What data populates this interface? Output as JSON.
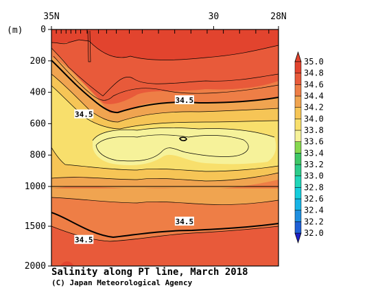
{
  "chart_data": {
    "type": "heatmap",
    "title": "Salinity along PT line, March 2018",
    "credit": "(C) Japan Meteorological Agency",
    "xlabel": "",
    "ylabel": "(m)",
    "x_axis": {
      "lat_range": [
        35,
        28
      ],
      "ticks": [
        {
          "value": 35,
          "label": "35N"
        },
        {
          "value": 30,
          "label": "30"
        },
        {
          "value": 28,
          "label": "28N"
        }
      ]
    },
    "y_axis": {
      "range": [
        0,
        2000
      ],
      "break_at": 1000,
      "ticks_upper": [
        {
          "value": 0,
          "label": "0"
        },
        {
          "value": 200,
          "label": "200"
        },
        {
          "value": 400,
          "label": "400"
        },
        {
          "value": 600,
          "label": "600"
        },
        {
          "value": 800,
          "label": "800"
        },
        {
          "value": 1000,
          "label": "1000"
        }
      ],
      "ticks_lower": [
        {
          "value": 1500,
          "label": "1500"
        },
        {
          "value": 2000,
          "label": "2000"
        }
      ]
    },
    "colorbar": {
      "levels": [
        32.0,
        32.2,
        32.4,
        32.6,
        32.8,
        33.0,
        33.2,
        33.4,
        33.6,
        33.8,
        34.0,
        34.2,
        34.4,
        34.6,
        34.8,
        35.0
      ],
      "labels": [
        "32.0",
        "32.2",
        "32.4",
        "32.6",
        "32.8",
        "33.0",
        "33.2",
        "33.4",
        "33.6",
        "33.8",
        "34.0",
        "34.2",
        "34.4",
        "34.6",
        "34.8",
        "35.0"
      ],
      "colors": [
        "#2020c8",
        "#1f60d6",
        "#1f8fe0",
        "#17b4e6",
        "#14cddc",
        "#20d6b8",
        "#2ccc8a",
        "#3fc766",
        "#86d84e",
        "#f6f29a",
        "#f8df6c",
        "#f6c556",
        "#f0a450",
        "#ee7e46",
        "#e85a3a",
        "#e2442e"
      ]
    },
    "contour_labels": [
      {
        "lat": 30.9,
        "depth": 450,
        "text": "34.5"
      },
      {
        "lat": 34.0,
        "depth": 540,
        "text": "34.5"
      },
      {
        "lat": 30.9,
        "depth": 1440,
        "text": "34.5"
      },
      {
        "lat": 34.0,
        "depth": 1670,
        "text": "34.5"
      }
    ],
    "station_lats": [
      35.0,
      34.85,
      34.7,
      34.55,
      34.4,
      34.25,
      34.1,
      33.9,
      33.55,
      33.3,
      33.0,
      32.6,
      32.2,
      31.7,
      31.2,
      30.7,
      30.2,
      29.7,
      29.2,
      28.7,
      28.3,
      28.0
    ]
  }
}
